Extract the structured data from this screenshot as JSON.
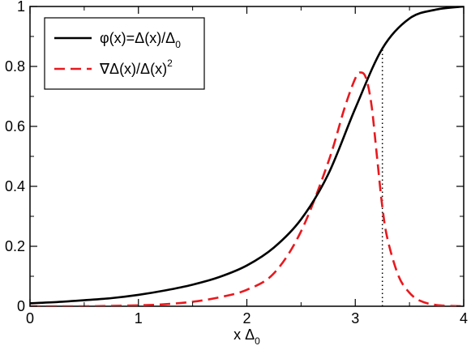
{
  "chart_data": {
    "type": "line",
    "xlabel": "x Δ",
    "xlabel_subscript": "0",
    "ylabel": "",
    "xlim": [
      0,
      4
    ],
    "ylim": [
      0,
      1
    ],
    "x_ticks": [
      0,
      1,
      2,
      3,
      4
    ],
    "y_ticks": [
      0,
      0.2,
      0.4,
      0.6,
      0.8,
      1
    ],
    "x_tick_labels": [
      "0",
      "1",
      "2",
      "3",
      "4"
    ],
    "y_tick_labels": [
      "0",
      "0.2",
      "0.4",
      "0.6",
      "0.8",
      "1"
    ],
    "grid": false,
    "legend_position": "top-left",
    "series": [
      {
        "name": "φ(x)=Δ(x)/Δ",
        "name_subscript": "0",
        "color": "#000000",
        "style": "solid",
        "x": [
          0,
          0.25,
          0.5,
          0.75,
          1.0,
          1.25,
          1.5,
          1.75,
          2.0,
          2.25,
          2.5,
          2.75,
          3.0,
          3.25,
          3.5,
          3.75,
          4.0
        ],
        "y": [
          0.01,
          0.014,
          0.02,
          0.027,
          0.038,
          0.053,
          0.072,
          0.098,
          0.136,
          0.196,
          0.29,
          0.44,
          0.66,
          0.86,
          0.96,
          0.99,
          1.0
        ]
      },
      {
        "name": "∇Δ(x)/Δ(x)",
        "name_superscript": "2",
        "color": "#e8191e",
        "style": "dashed",
        "x": [
          0,
          0.5,
          1.0,
          1.25,
          1.5,
          1.75,
          2.0,
          2.25,
          2.5,
          2.75,
          2.9,
          3.0,
          3.05,
          3.1,
          3.15,
          3.2,
          3.25,
          3.3,
          3.4,
          3.5,
          3.6,
          3.75,
          4.0
        ],
        "y": [
          0.0,
          0.0,
          0.003,
          0.007,
          0.015,
          0.03,
          0.055,
          0.11,
          0.25,
          0.48,
          0.66,
          0.76,
          0.78,
          0.76,
          0.67,
          0.5,
          0.33,
          0.22,
          0.1,
          0.045,
          0.018,
          0.004,
          0.0
        ]
      }
    ],
    "annotations": [
      {
        "type": "vertical-dotted-line",
        "x": 3.25,
        "y_from": 0,
        "y_to": 0.86,
        "color": "#000000"
      }
    ]
  }
}
